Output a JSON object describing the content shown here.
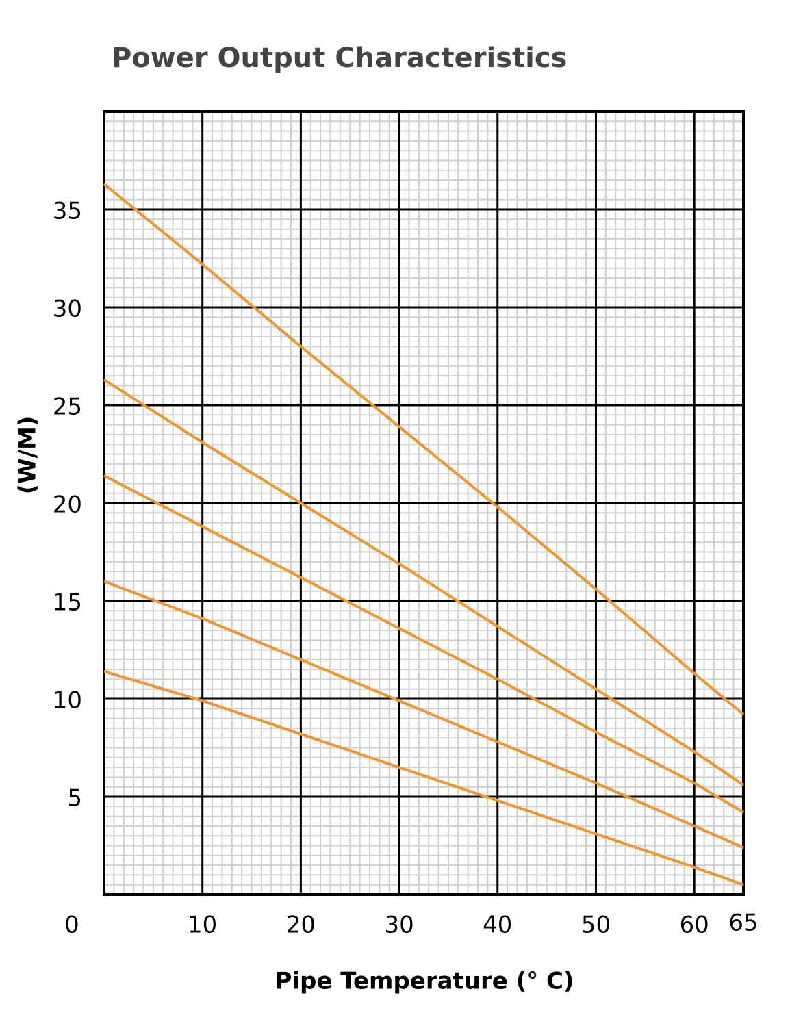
{
  "chart_data": {
    "type": "line",
    "title": "Power Output Characteristics",
    "x_label": "Pipe Temperature (° C)",
    "y_label": "(W/M)",
    "x": [
      0,
      10,
      20,
      30,
      40,
      50,
      60,
      65
    ],
    "series": [
      {
        "color": "#f0952e",
        "values": [
          36.3,
          32.2,
          28.0,
          23.9,
          19.8,
          15.6,
          11.3,
          9.2
        ]
      },
      {
        "color": "#f0952e",
        "values": [
          26.3,
          23.1,
          20.0,
          16.9,
          13.7,
          10.5,
          7.3,
          5.6
        ]
      },
      {
        "color": "#f0952e",
        "values": [
          21.4,
          18.8,
          16.2,
          13.6,
          11.0,
          8.3,
          5.7,
          4.2
        ]
      },
      {
        "color": "#f0952e",
        "values": [
          16.0,
          14.1,
          12.0,
          9.9,
          7.8,
          5.7,
          3.5,
          2.4
        ]
      },
      {
        "color": "#f0952e",
        "values": [
          11.4,
          9.9,
          8.2,
          6.5,
          4.8,
          3.1,
          1.4,
          0.5
        ]
      }
    ],
    "xlim": [
      0,
      65
    ],
    "ylim": [
      0,
      40
    ],
    "xticks": [
      0,
      10,
      20,
      30,
      40,
      50,
      60,
      65
    ],
    "yticks": [
      5,
      10,
      15,
      20,
      25,
      30,
      35
    ],
    "grid": true
  }
}
